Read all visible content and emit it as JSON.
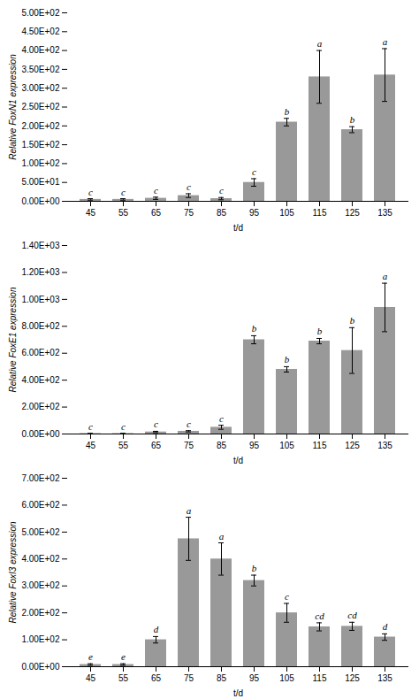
{
  "chart_data": [
    {
      "type": "bar",
      "categories": [
        45,
        55,
        65,
        75,
        85,
        95,
        105,
        115,
        125,
        135
      ],
      "values": [
        5,
        5,
        8,
        15,
        7,
        50,
        210,
        330,
        190,
        335
      ],
      "errors": [
        2,
        2,
        3,
        5,
        3,
        10,
        10,
        70,
        8,
        70
      ],
      "letters": [
        "c",
        "c",
        "c",
        "c",
        "c",
        "c",
        "b",
        "a",
        "b",
        "a"
      ],
      "color": "#999999",
      "xlabel": "t/d",
      "ylabel": "Relative FoxN1 expression",
      "ylim": [
        0,
        500
      ],
      "yticks": [
        {
          "value": 0,
          "label": "0.00E+00"
        },
        {
          "value": 50,
          "label": "5.00E+01"
        },
        {
          "value": 100,
          "label": "1.00E+02"
        },
        {
          "value": 150,
          "label": "1.50E+02"
        },
        {
          "value": 200,
          "label": "2.00E+02"
        },
        {
          "value": 250,
          "label": "2.50E+02"
        },
        {
          "value": 300,
          "label": "3.00E+02"
        },
        {
          "value": 350,
          "label": "3.50E+02"
        },
        {
          "value": 400,
          "label": "4.00E+02"
        },
        {
          "value": 450,
          "label": "4.50E+02"
        },
        {
          "value": 500,
          "label": "5.00E+02"
        }
      ],
      "grid": false
    },
    {
      "type": "bar",
      "categories": [
        45,
        55,
        65,
        75,
        85,
        95,
        105,
        115,
        125,
        135
      ],
      "values": [
        3,
        3,
        15,
        20,
        50,
        700,
        480,
        690,
        620,
        940
      ],
      "errors": [
        2,
        2,
        5,
        5,
        15,
        30,
        20,
        20,
        170,
        180
      ],
      "letters": [
        "c",
        "c",
        "c",
        "c",
        "c",
        "b",
        "b",
        "b",
        "b",
        "a"
      ],
      "color": "#999999",
      "xlabel": "t/d",
      "ylabel": "Relative FoxE1 expression",
      "ylim": [
        0,
        1400
      ],
      "yticks": [
        {
          "value": 0,
          "label": "0.00E+00"
        },
        {
          "value": 200,
          "label": "2.00E+02"
        },
        {
          "value": 400,
          "label": "4.00E+02"
        },
        {
          "value": 600,
          "label": "6.00E+02"
        },
        {
          "value": 800,
          "label": "8.00E+02"
        },
        {
          "value": 1000,
          "label": "1.00E+03"
        },
        {
          "value": 1200,
          "label": "1.20E+03"
        },
        {
          "value": 1400,
          "label": "1.40E+03"
        }
      ],
      "grid": false
    },
    {
      "type": "bar",
      "categories": [
        45,
        55,
        65,
        75,
        85,
        95,
        105,
        115,
        125,
        135
      ],
      "values": [
        8,
        8,
        100,
        475,
        400,
        320,
        200,
        148,
        150,
        110
      ],
      "errors": [
        3,
        3,
        12,
        80,
        60,
        20,
        35,
        15,
        15,
        12
      ],
      "letters": [
        "e",
        "e",
        "d",
        "a",
        "a",
        "b",
        "c",
        "cd",
        "cd",
        "d"
      ],
      "color": "#999999",
      "xlabel": "t/d",
      "ylabel": "Relative FoxI3 expression",
      "ylim": [
        0,
        700
      ],
      "yticks": [
        {
          "value": 0,
          "label": "0.00E+00"
        },
        {
          "value": 100,
          "label": "1.00E+02"
        },
        {
          "value": 200,
          "label": "2.00E+02"
        },
        {
          "value": 300,
          "label": "3.00E+02"
        },
        {
          "value": 400,
          "label": "4.00E+02"
        },
        {
          "value": 500,
          "label": "5.00E+02"
        },
        {
          "value": 600,
          "label": "6.00E+02"
        },
        {
          "value": 700,
          "label": "7.00E+02"
        }
      ],
      "grid": false
    }
  ]
}
